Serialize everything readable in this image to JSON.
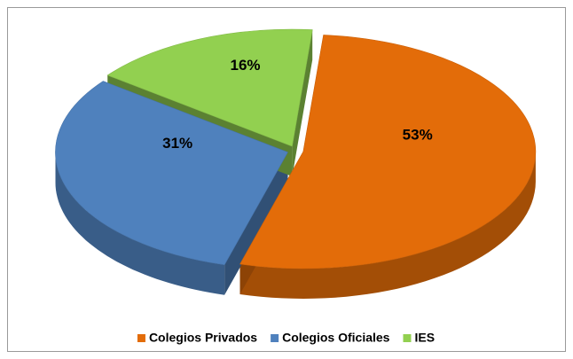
{
  "chart_data": {
    "type": "pie",
    "categories": [
      "Colegios Privados",
      "Colegios Oficiales",
      "IES"
    ],
    "values": [
      53,
      31,
      16
    ],
    "value_labels": [
      "53%",
      "31%",
      "16%"
    ],
    "colors": [
      "#e36c09",
      "#4f81bd",
      "#92d050"
    ],
    "legend": "bottom"
  }
}
